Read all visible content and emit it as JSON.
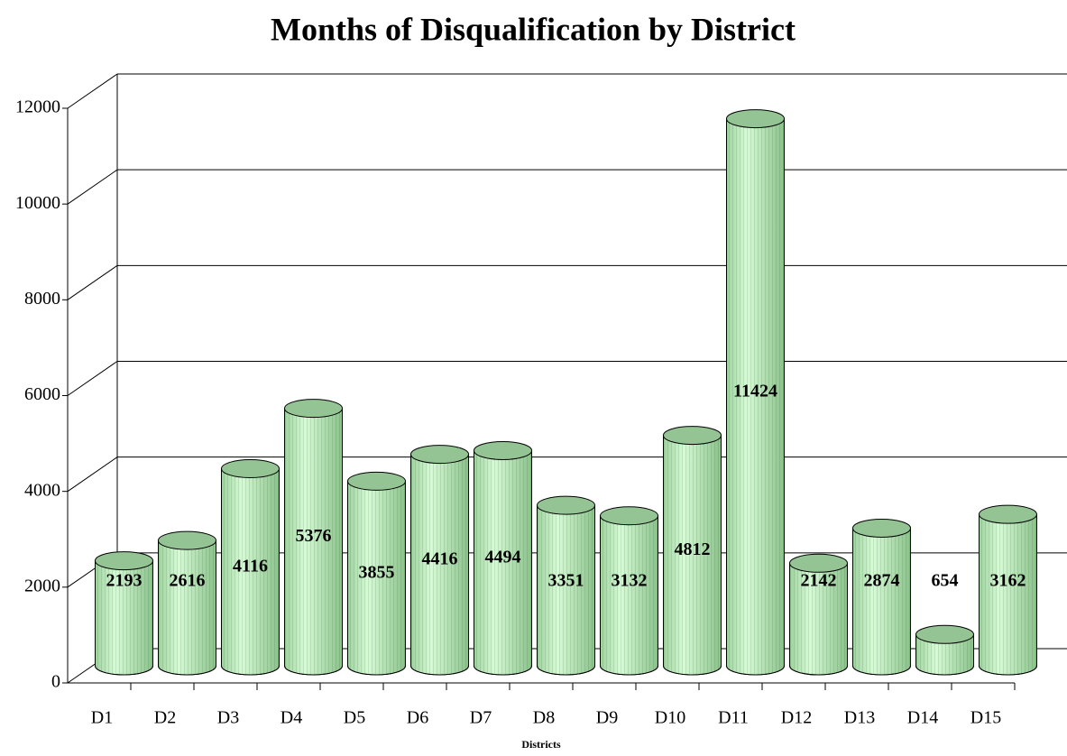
{
  "chart_data": {
    "type": "bar",
    "title": "Months of Disqualification by District",
    "x_label": "Districts",
    "categories": [
      "D1",
      "D2",
      "D3",
      "D4",
      "D5",
      "D6",
      "D7",
      "D8",
      "D9",
      "D10",
      "D11",
      "D12",
      "D13",
      "D14",
      "D15"
    ],
    "values": [
      2193,
      2616,
      4116,
      5376,
      3855,
      4416,
      4494,
      3351,
      3132,
      4812,
      11424,
      2142,
      2874,
      654,
      3162
    ],
    "color": "#b8eab8",
    "ylim": [
      0,
      12000
    ],
    "yticks": [
      0,
      2000,
      4000,
      6000,
      8000,
      10000,
      12000
    ],
    "grid": true
  }
}
